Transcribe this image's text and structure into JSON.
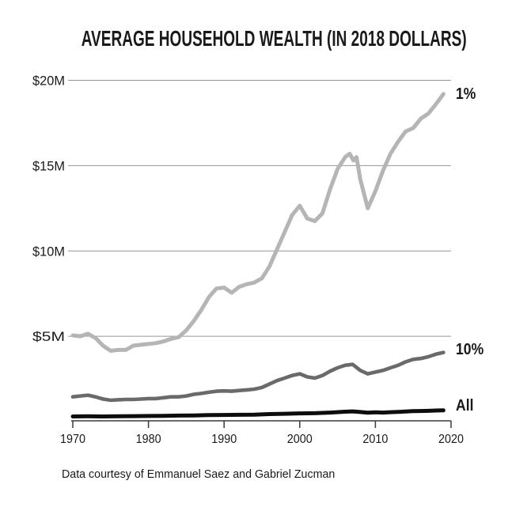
{
  "page": {
    "background": "#ffffff"
  },
  "chart_data": {
    "type": "line",
    "title": "AVERAGE HOUSEHOLD WEALTH (IN 2018 DOLLARS)",
    "caption": "Data courtesy of Emmanuel Saez and Gabriel Zucman",
    "x_axis": {
      "domain": [
        1970,
        2020
      ],
      "ticks": [
        1970,
        1980,
        1990,
        2000,
        2010,
        2020
      ],
      "grid": false
    },
    "y_axis": {
      "domain": [
        0,
        20
      ],
      "unit": "millions of 2018 dollars",
      "tick_values": [
        5,
        10,
        15,
        20
      ],
      "tick_labels": [
        "$5M",
        "$10M",
        "$15M",
        "$20M"
      ],
      "grid": true
    },
    "legend_position": "labels-at-right-end-of-lines",
    "style": {
      "grid_color": "#969696",
      "axis_color": "#3a3a3a",
      "text_color": "#1a1a1a",
      "background": "#ffffff"
    },
    "series": [
      {
        "name": "top-1-percent",
        "label": "1%",
        "color": "#b5b5b5",
        "stroke_width": 5,
        "points": [
          [
            1970,
            5.05
          ],
          [
            1971,
            5.0
          ],
          [
            1972,
            5.15
          ],
          [
            1973,
            4.9
          ],
          [
            1974,
            4.45
          ],
          [
            1975,
            4.15
          ],
          [
            1976,
            4.2
          ],
          [
            1977,
            4.2
          ],
          [
            1978,
            4.45
          ],
          [
            1979,
            4.5
          ],
          [
            1980,
            4.55
          ],
          [
            1981,
            4.6
          ],
          [
            1982,
            4.7
          ],
          [
            1983,
            4.85
          ],
          [
            1984,
            4.95
          ],
          [
            1985,
            5.35
          ],
          [
            1986,
            5.9
          ],
          [
            1987,
            6.55
          ],
          [
            1988,
            7.3
          ],
          [
            1989,
            7.8
          ],
          [
            1990,
            7.85
          ],
          [
            1991,
            7.55
          ],
          [
            1992,
            7.9
          ],
          [
            1993,
            8.05
          ],
          [
            1994,
            8.15
          ],
          [
            1995,
            8.4
          ],
          [
            1996,
            9.1
          ],
          [
            1997,
            10.1
          ],
          [
            1998,
            11.1
          ],
          [
            1999,
            12.1
          ],
          [
            2000,
            12.65
          ],
          [
            2001,
            11.9
          ],
          [
            2002,
            11.75
          ],
          [
            2003,
            12.2
          ],
          [
            2004,
            13.6
          ],
          [
            2005,
            14.8
          ],
          [
            2006,
            15.5
          ],
          [
            2006.6,
            15.7
          ],
          [
            2007.1,
            15.3
          ],
          [
            2007.5,
            15.5
          ],
          [
            2008,
            14.2
          ],
          [
            2009,
            12.5
          ],
          [
            2010,
            13.5
          ],
          [
            2011,
            14.7
          ],
          [
            2012,
            15.7
          ],
          [
            2013,
            16.4
          ],
          [
            2014,
            17.0
          ],
          [
            2015,
            17.2
          ],
          [
            2016,
            17.75
          ],
          [
            2017,
            18.05
          ],
          [
            2018,
            18.6
          ],
          [
            2019,
            19.2
          ]
        ]
      },
      {
        "name": "top-10-percent",
        "label": "10%",
        "color": "#6a6a6a",
        "stroke_width": 4.6,
        "points": [
          [
            1970,
            1.45
          ],
          [
            1971,
            1.5
          ],
          [
            1972,
            1.55
          ],
          [
            1973,
            1.45
          ],
          [
            1974,
            1.32
          ],
          [
            1975,
            1.25
          ],
          [
            1976,
            1.28
          ],
          [
            1977,
            1.3
          ],
          [
            1978,
            1.3
          ],
          [
            1979,
            1.32
          ],
          [
            1980,
            1.35
          ],
          [
            1981,
            1.35
          ],
          [
            1982,
            1.4
          ],
          [
            1983,
            1.45
          ],
          [
            1984,
            1.45
          ],
          [
            1985,
            1.5
          ],
          [
            1986,
            1.6
          ],
          [
            1987,
            1.65
          ],
          [
            1988,
            1.72
          ],
          [
            1989,
            1.78
          ],
          [
            1990,
            1.8
          ],
          [
            1991,
            1.78
          ],
          [
            1992,
            1.82
          ],
          [
            1993,
            1.86
          ],
          [
            1994,
            1.9
          ],
          [
            1995,
            2.0
          ],
          [
            1996,
            2.2
          ],
          [
            1997,
            2.4
          ],
          [
            1998,
            2.55
          ],
          [
            1999,
            2.7
          ],
          [
            2000,
            2.8
          ],
          [
            2001,
            2.62
          ],
          [
            2002,
            2.55
          ],
          [
            2003,
            2.7
          ],
          [
            2004,
            2.95
          ],
          [
            2005,
            3.15
          ],
          [
            2006,
            3.3
          ],
          [
            2007,
            3.35
          ],
          [
            2008,
            3.0
          ],
          [
            2009,
            2.8
          ],
          [
            2010,
            2.9
          ],
          [
            2011,
            3.0
          ],
          [
            2012,
            3.15
          ],
          [
            2013,
            3.3
          ],
          [
            2014,
            3.5
          ],
          [
            2015,
            3.65
          ],
          [
            2016,
            3.7
          ],
          [
            2017,
            3.8
          ],
          [
            2018,
            3.95
          ],
          [
            2019,
            4.05
          ]
        ]
      },
      {
        "name": "all-households",
        "label": "All",
        "color": "#0d0d0d",
        "stroke_width": 5,
        "points": [
          [
            1970,
            0.3
          ],
          [
            1972,
            0.31
          ],
          [
            1974,
            0.3
          ],
          [
            1976,
            0.31
          ],
          [
            1978,
            0.32
          ],
          [
            1980,
            0.33
          ],
          [
            1982,
            0.34
          ],
          [
            1984,
            0.35
          ],
          [
            1986,
            0.36
          ],
          [
            1988,
            0.38
          ],
          [
            1990,
            0.39
          ],
          [
            1992,
            0.4
          ],
          [
            1994,
            0.41
          ],
          [
            1996,
            0.44
          ],
          [
            1998,
            0.46
          ],
          [
            2000,
            0.48
          ],
          [
            2002,
            0.49
          ],
          [
            2004,
            0.53
          ],
          [
            2006,
            0.58
          ],
          [
            2007,
            0.6
          ],
          [
            2008,
            0.56
          ],
          [
            2009,
            0.52
          ],
          [
            2010,
            0.54
          ],
          [
            2011,
            0.53
          ],
          [
            2012,
            0.55
          ],
          [
            2013,
            0.57
          ],
          [
            2014,
            0.59
          ],
          [
            2015,
            0.61
          ],
          [
            2016,
            0.62
          ],
          [
            2017,
            0.63
          ],
          [
            2018,
            0.65
          ],
          [
            2019,
            0.66
          ]
        ]
      }
    ]
  }
}
